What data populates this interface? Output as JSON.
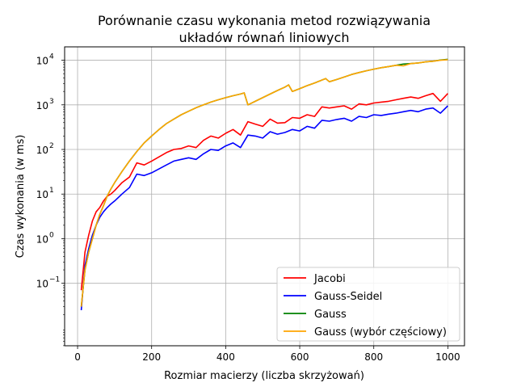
{
  "chart_data": {
    "type": "line",
    "title_lines": [
      "Porównanie czasu wykonania metod rozwiązywania",
      "układów równań liniowych"
    ],
    "xlabel": "Rozmiar macierzy (liczba skrzyżowań)",
    "ylabel": "Czas wykonania (w ms)",
    "xlim": [
      -35,
      1045
    ],
    "ylim_log10": [
      -2.4,
      4.3
    ],
    "y_scale": "log",
    "grid": true,
    "legend_position": "lower-right",
    "x_ticks": [
      0,
      200,
      400,
      600,
      800,
      1000
    ],
    "x_tick_labels": [
      "0",
      "200",
      "400",
      "600",
      "800",
      "1000"
    ],
    "y_ticks": [
      -1,
      0,
      1,
      2,
      3,
      4
    ],
    "y_tick_labels": [
      "10",
      "10",
      "10",
      "10",
      "10",
      "10"
    ],
    "y_tick_exponents": [
      "−1",
      "0",
      "1",
      "2",
      "3",
      "4"
    ],
    "series": [
      {
        "name": "Jacobi",
        "color": "#ff0000",
        "x": [
          10,
          20,
          30,
          40,
          50,
          60,
          70,
          80,
          90,
          100,
          120,
          140,
          160,
          180,
          200,
          240,
          260,
          280,
          300,
          320,
          340,
          360,
          380,
          400,
          420,
          440,
          460,
          480,
          500,
          520,
          540,
          560,
          580,
          600,
          620,
          640,
          660,
          680,
          700,
          720,
          740,
          760,
          780,
          800,
          820,
          840,
          860,
          880,
          900,
          920,
          940,
          960,
          980,
          1000
        ],
        "y": [
          0.07,
          0.5,
          1.2,
          2.5,
          4,
          5,
          7,
          9,
          10,
          12,
          18,
          24,
          50,
          45,
          55,
          85,
          100,
          105,
          120,
          110,
          160,
          200,
          180,
          230,
          280,
          210,
          420,
          370,
          330,
          480,
          390,
          400,
          520,
          500,
          600,
          550,
          900,
          850,
          900,
          950,
          800,
          1050,
          1000,
          1100,
          1150,
          1200,
          1300,
          1400,
          1500,
          1400,
          1600,
          1800,
          1200,
          1800
        ]
      },
      {
        "name": "Gauss-Seidel",
        "color": "#0000ff",
        "x": [
          10,
          20,
          30,
          40,
          50,
          60,
          70,
          80,
          90,
          100,
          120,
          140,
          160,
          180,
          200,
          240,
          260,
          280,
          300,
          320,
          340,
          360,
          380,
          400,
          420,
          440,
          460,
          480,
          500,
          520,
          540,
          560,
          580,
          600,
          620,
          640,
          660,
          680,
          700,
          720,
          740,
          760,
          780,
          800,
          820,
          840,
          860,
          880,
          900,
          920,
          940,
          960,
          980,
          1000
        ],
        "y": [
          0.025,
          0.25,
          0.6,
          1.2,
          2,
          3,
          4,
          5,
          6,
          7,
          10,
          14,
          28,
          26,
          30,
          45,
          55,
          60,
          65,
          60,
          80,
          100,
          95,
          120,
          140,
          110,
          210,
          200,
          180,
          250,
          220,
          240,
          280,
          260,
          330,
          300,
          450,
          430,
          470,
          500,
          430,
          550,
          520,
          600,
          580,
          620,
          650,
          700,
          750,
          700,
          800,
          850,
          650,
          950
        ]
      },
      {
        "name": "Gauss",
        "color": "#008000",
        "x": [
          10,
          20,
          30,
          40,
          50,
          60,
          70,
          80,
          90,
          100,
          120,
          140,
          160,
          180,
          200,
          220,
          240,
          260,
          280,
          300,
          320,
          340,
          360,
          380,
          400,
          420,
          440,
          450,
          460,
          480,
          500,
          520,
          540,
          560,
          570,
          580,
          600,
          620,
          640,
          660,
          670,
          680,
          700,
          720,
          740,
          760,
          780,
          800,
          820,
          840,
          860,
          880,
          900,
          920,
          940,
          960,
          980,
          1000
        ],
        "y": [
          0.03,
          0.2,
          0.5,
          1,
          2,
          3.5,
          5.5,
          9,
          13,
          18,
          32,
          55,
          90,
          140,
          200,
          280,
          380,
          480,
          600,
          720,
          860,
          1000,
          1150,
          1300,
          1450,
          1600,
          1750,
          1850,
          1000,
          1200,
          1450,
          1750,
          2100,
          2500,
          2800,
          2000,
          2300,
          2700,
          3100,
          3600,
          3900,
          3300,
          3700,
          4200,
          4800,
          5300,
          5800,
          6300,
          6800,
          7200,
          7700,
          8200,
          8400,
          8700,
          9200,
          9500,
          10100,
          10500
        ]
      },
      {
        "name": "Gauss (wybór częściowy)",
        "color": "#ffa500",
        "x": [
          10,
          20,
          30,
          40,
          50,
          60,
          70,
          80,
          90,
          100,
          120,
          140,
          160,
          180,
          200,
          220,
          240,
          260,
          280,
          300,
          320,
          340,
          360,
          380,
          400,
          420,
          440,
          450,
          460,
          480,
          500,
          520,
          540,
          560,
          570,
          580,
          600,
          620,
          640,
          660,
          670,
          680,
          700,
          720,
          740,
          760,
          780,
          800,
          820,
          840,
          860,
          880,
          900,
          920,
          940,
          960,
          980,
          1000
        ],
        "y": [
          0.03,
          0.2,
          0.5,
          1,
          2,
          3.5,
          5.5,
          9,
          13,
          18,
          32,
          55,
          90,
          140,
          200,
          280,
          380,
          480,
          600,
          720,
          860,
          1000,
          1150,
          1300,
          1450,
          1600,
          1750,
          1850,
          1000,
          1200,
          1450,
          1750,
          2100,
          2500,
          2800,
          2000,
          2300,
          2700,
          3100,
          3600,
          3900,
          3300,
          3700,
          4200,
          4800,
          5300,
          5800,
          6300,
          6800,
          7200,
          7700,
          7500,
          8400,
          8700,
          9200,
          9500,
          10000,
          10300
        ]
      }
    ]
  }
}
